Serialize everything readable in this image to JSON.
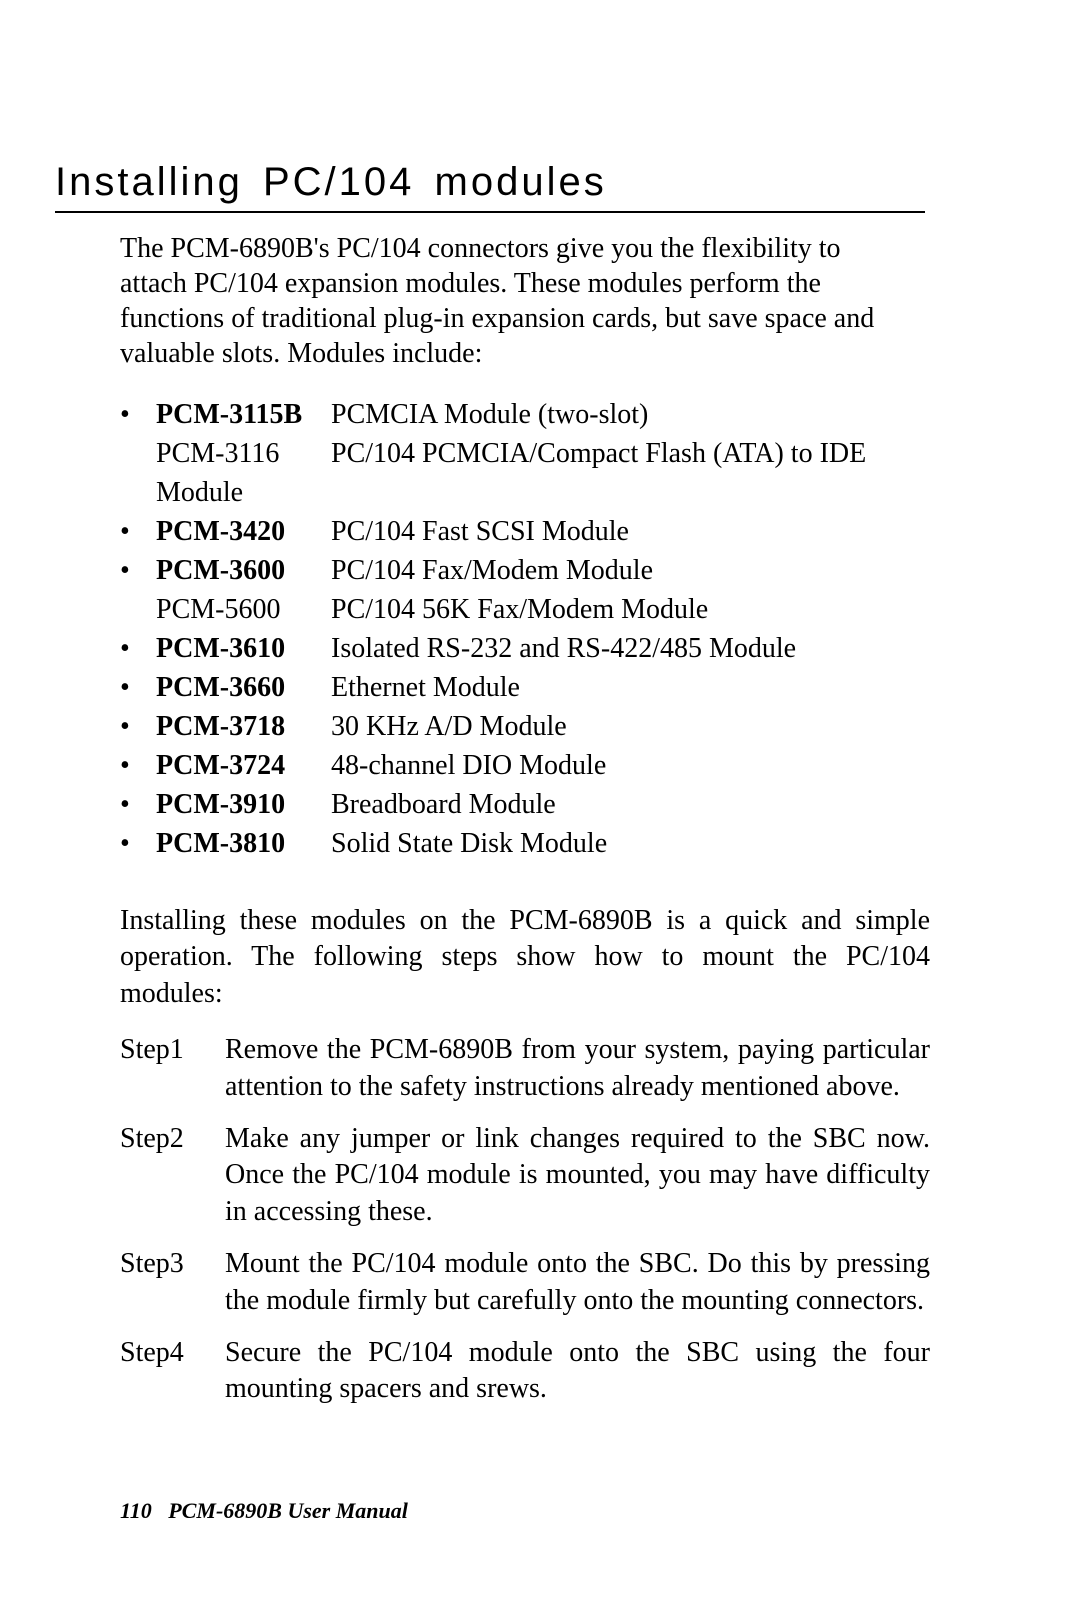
{
  "heading": "Installing PC/104 modules",
  "intro": "The PCM-6890B's PC/104 connectors give you the flexibility to attach PC/104 expansion modules.  These modules perform the functions of traditional plug-in expansion cards, but save space and valuable slots.  Modules include:",
  "modules": [
    {
      "bullet": true,
      "bold": true,
      "name": "PCM-3115B",
      "desc": "PCMCIA Module (two-slot)"
    },
    {
      "bullet": false,
      "bold": false,
      "name": "PCM-3116",
      "desc": "PC/104 PCMCIA/Compact Flash (ATA) to IDE"
    },
    {
      "bullet": false,
      "bold": false,
      "name": "Module",
      "desc": ""
    },
    {
      "bullet": true,
      "bold": true,
      "name": "PCM-3420",
      "desc": "PC/104 Fast SCSI Module"
    },
    {
      "bullet": true,
      "bold": true,
      "name": "PCM-3600",
      "desc": "PC/104 Fax/Modem Module"
    },
    {
      "bullet": false,
      "bold": false,
      "name": "PCM-5600",
      "desc": "PC/104 56K Fax/Modem Module"
    },
    {
      "bullet": true,
      "bold": true,
      "name": "PCM-3610",
      "desc": "Isolated RS-232 and RS-422/485 Module"
    },
    {
      "bullet": true,
      "bold": true,
      "name": "PCM-3660",
      "desc": "Ethernet Module"
    },
    {
      "bullet": true,
      "bold": true,
      "name": "PCM-3718",
      "desc": "30 KHz A/D Module"
    },
    {
      "bullet": true,
      "bold": true,
      "name": "PCM-3724",
      "desc": "48-channel DIO Module"
    },
    {
      "bullet": true,
      "bold": true,
      "name": "PCM-3910",
      "desc": "Breadboard Module"
    },
    {
      "bullet": true,
      "bold": true,
      "name": "PCM-3810",
      "desc": "Solid State Disk Module"
    }
  ],
  "midpara": "Installing these modules on the PCM-6890B is a quick and simple operation. The following steps show how to mount the PC/104 modules:",
  "steps": [
    {
      "label": "Step1",
      "text": "Remove the PCM-6890B from your system, paying particular attention to the safety instructions already mentioned above."
    },
    {
      "label": "Step2",
      "text": "Make any jumper or link changes required to the SBC now.  Once the PC/104 module is mounted, you may have difficulty in accessing these."
    },
    {
      "label": "Step3",
      "text": "Mount the PC/104 module onto the SBC.  Do this by pressing the module firmly but carefully onto the mounting connectors."
    },
    {
      "label": "Step4",
      "text": "Secure the PC/104 module onto the SBC using the four mounting spacers and srews."
    }
  ],
  "footer": {
    "page": "110",
    "title": "PCM-6890B  User Manual"
  },
  "bullet_glyph": "•"
}
